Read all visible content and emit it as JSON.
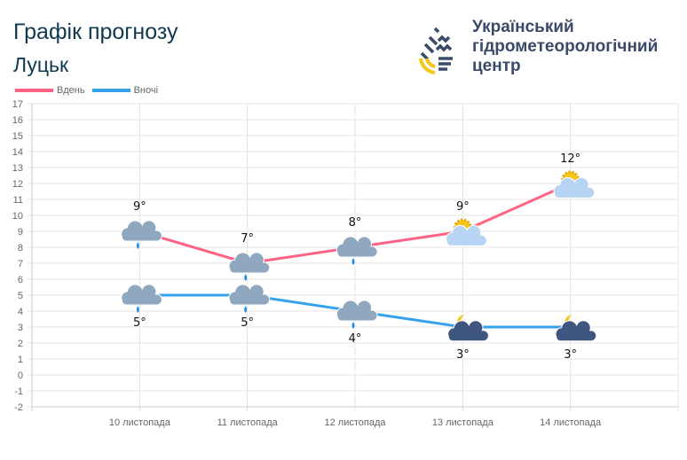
{
  "header": {
    "title": "Графік прогнозу",
    "city": "Луцьк"
  },
  "logo": {
    "lines": [
      "Український",
      "гідрометеорологічний",
      "центр"
    ]
  },
  "chart_data": {
    "type": "line",
    "categories": [
      "10 листопада",
      "11 листопада",
      "12 листопада",
      "13 листопада",
      "14 листопада"
    ],
    "series": [
      {
        "name": "Вдень",
        "color": "#ff6384",
        "values": [
          9,
          7,
          8,
          9,
          12
        ],
        "labels": [
          "9°",
          "7°",
          "8°",
          "9°",
          "12°"
        ],
        "icons": [
          "cloud-rain",
          "cloud-rain",
          "cloud-rain",
          "sun-cloud",
          "sun-cloud"
        ]
      },
      {
        "name": "Вночі",
        "color": "#36a2eb",
        "values": [
          5,
          5,
          4,
          3,
          3
        ],
        "labels": [
          "5°",
          "5°",
          "4°",
          "3°",
          "3°"
        ],
        "icons": [
          "cloud-rain",
          "cloud-rain",
          "cloud-rain",
          "moon-cloud",
          "moon-cloud"
        ]
      }
    ],
    "ylim": [
      -2,
      17
    ],
    "yticks": [
      17,
      16,
      15,
      14,
      13,
      12,
      11,
      10,
      9,
      8,
      7,
      6,
      5,
      4,
      3,
      2,
      1,
      0,
      -1,
      -2
    ],
    "grid": true,
    "legend": "top-left"
  }
}
